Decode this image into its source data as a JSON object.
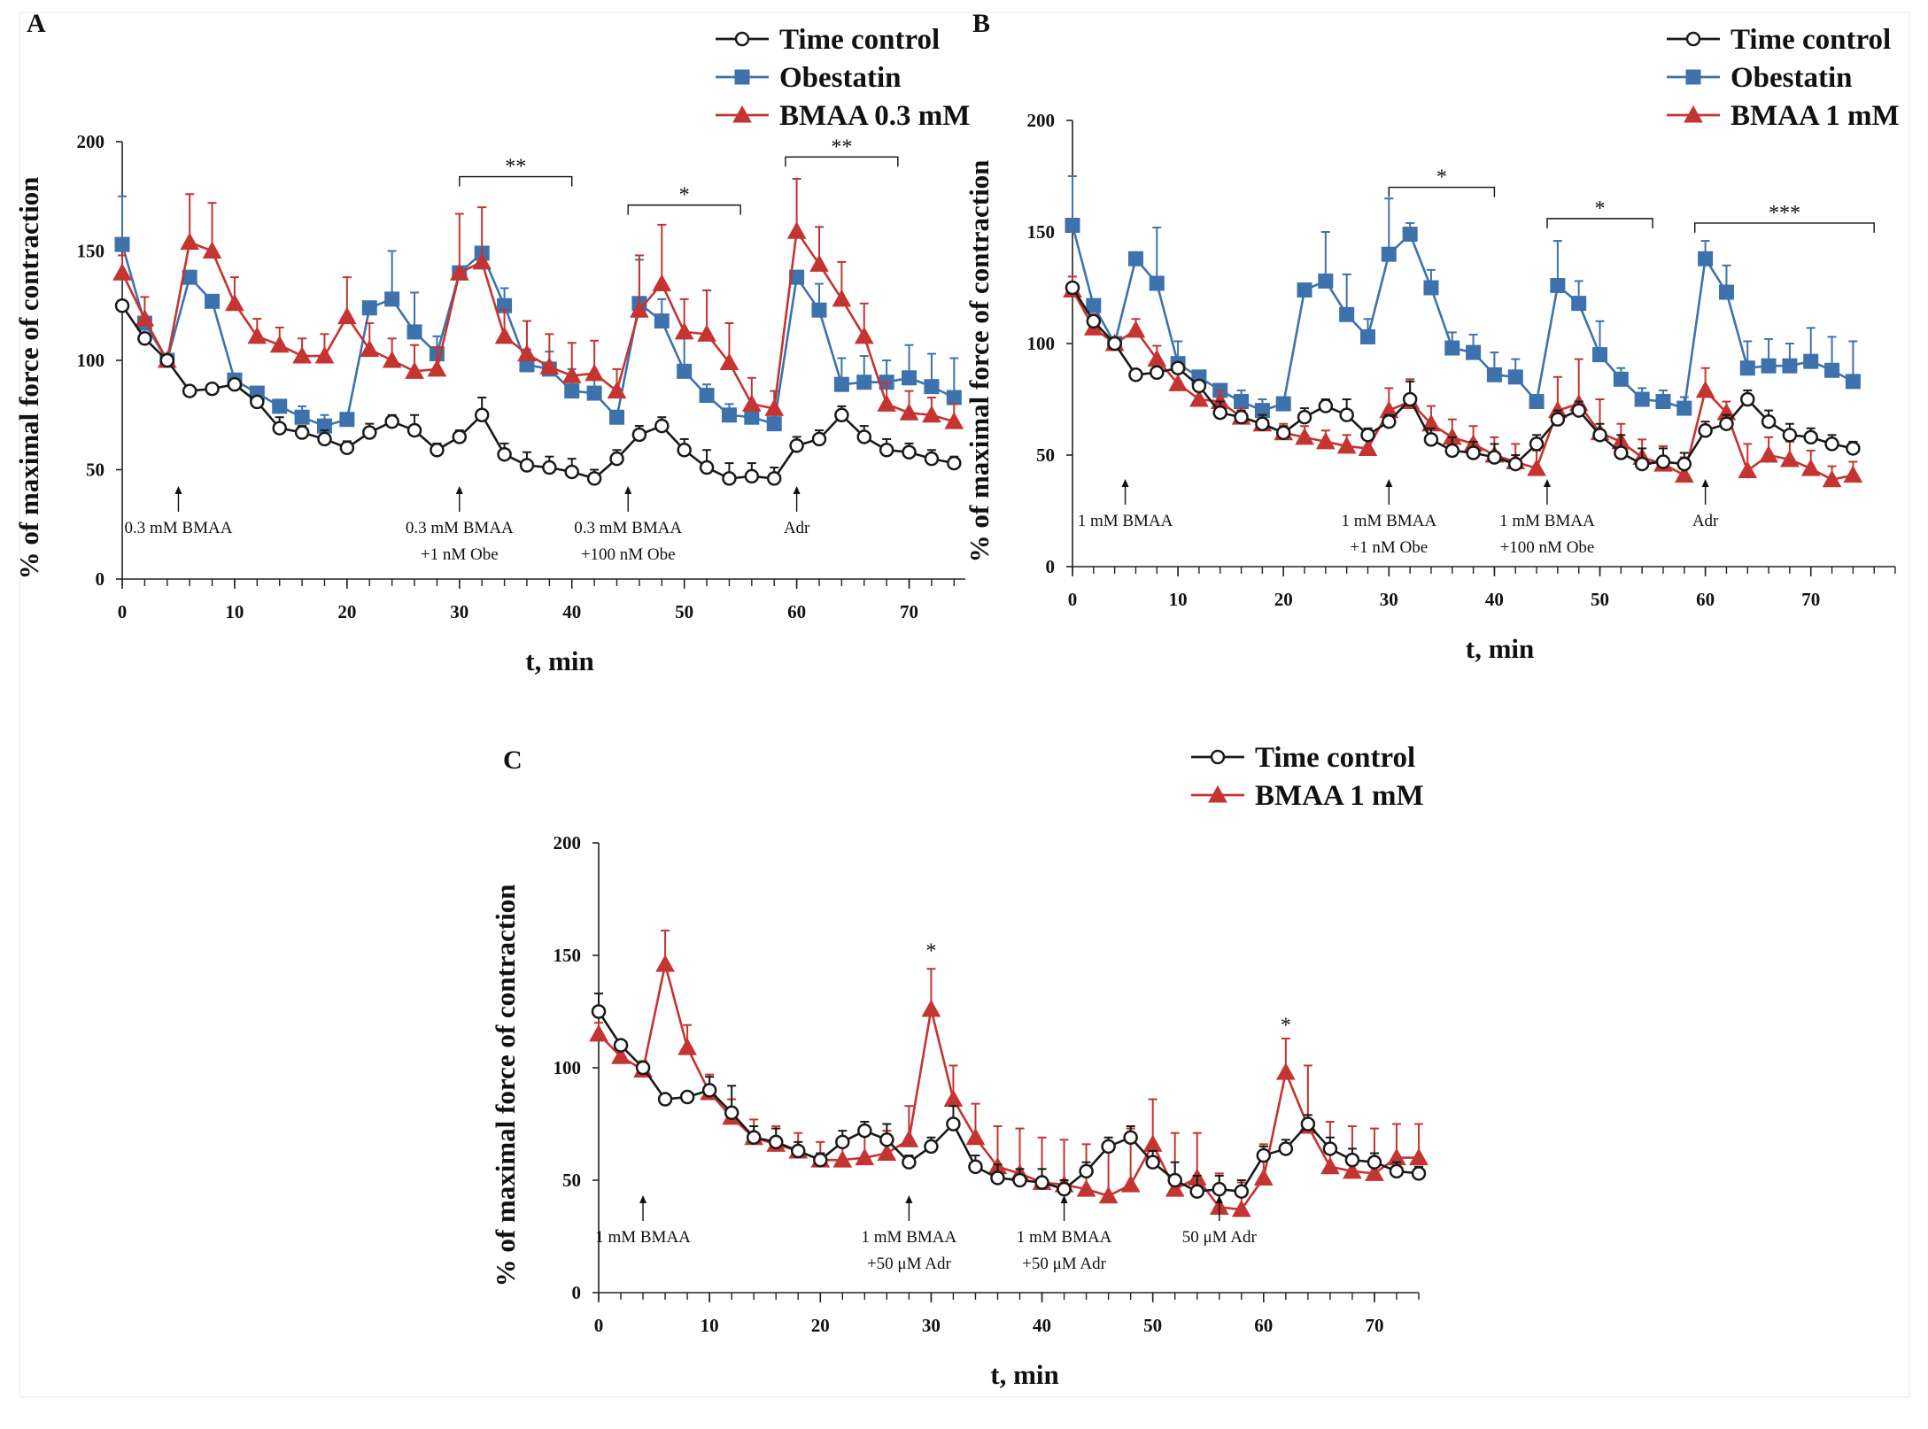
{
  "colors": {
    "control": "#1a1a1a",
    "obestatin": "#3d72ac",
    "bmaa": "#c43431"
  },
  "chart_data": [
    {
      "id": "A",
      "type": "line",
      "panel_label": "A",
      "xlabel": "t, min",
      "ylabel": "% of maximal force of contraction",
      "xlim": [
        0,
        75
      ],
      "ylim": [
        0,
        200
      ],
      "xticks": [
        0,
        10,
        20,
        30,
        40,
        50,
        60,
        70
      ],
      "yticks": [
        0,
        50,
        100,
        150,
        200
      ],
      "series": [
        {
          "name": "Time control",
          "key": "control",
          "marker": "circle",
          "x": [
            0,
            2,
            4,
            6,
            8,
            10,
            12,
            14,
            16,
            18,
            20,
            22,
            24,
            26,
            28,
            30,
            32,
            34,
            36,
            38,
            40,
            42,
            44,
            46,
            48,
            50,
            52,
            54,
            56,
            58,
            60,
            62,
            64,
            66,
            68,
            70,
            72,
            74
          ],
          "y": [
            125,
            110,
            100,
            86,
            87,
            89,
            81,
            69,
            67,
            64,
            60,
            67,
            72,
            68,
            59,
            65,
            75,
            57,
            52,
            51,
            49,
            46,
            55,
            66,
            70,
            59,
            51,
            46,
            47,
            46,
            61,
            64,
            75,
            65,
            59,
            58,
            55,
            53
          ],
          "err": [
            0,
            0,
            0,
            0,
            0,
            0,
            0,
            5,
            3,
            4,
            3,
            4,
            3,
            7,
            3,
            3,
            8,
            5,
            6,
            5,
            6,
            4,
            4,
            4,
            4,
            5,
            8,
            7,
            6,
            5,
            4,
            4,
            4,
            5,
            5,
            4,
            4,
            3
          ]
        },
        {
          "name": "Obestatin",
          "key": "obestatin",
          "marker": "square",
          "x": [
            0,
            2,
            4,
            6,
            8,
            10,
            12,
            14,
            16,
            18,
            20,
            22,
            24,
            26,
            28,
            30,
            32,
            34,
            36,
            38,
            40,
            42,
            44,
            46,
            48,
            50,
            52,
            54,
            56,
            58,
            60,
            62,
            64,
            66,
            68,
            70,
            72,
            74
          ],
          "y": [
            153,
            117,
            100,
            138,
            127,
            91,
            85,
            79,
            74,
            70,
            73,
            124,
            128,
            113,
            103,
            140,
            149,
            125,
            98,
            96,
            86,
            85,
            74,
            126,
            118,
            95,
            84,
            75,
            74,
            71,
            138,
            123,
            89,
            90,
            90,
            92,
            88,
            83
          ],
          "err": [
            22,
            0,
            0,
            0,
            0,
            0,
            0,
            0,
            5,
            5,
            0,
            0,
            22,
            18,
            8,
            0,
            0,
            8,
            7,
            8,
            10,
            8,
            0,
            20,
            10,
            15,
            5,
            5,
            5,
            5,
            0,
            12,
            12,
            12,
            10,
            15,
            15,
            18
          ]
        },
        {
          "name": "BMAA 0.3 mM",
          "key": "bmaa",
          "marker": "triangle",
          "x": [
            0,
            2,
            4,
            6,
            8,
            10,
            12,
            14,
            16,
            18,
            20,
            22,
            24,
            26,
            28,
            30,
            32,
            34,
            36,
            38,
            40,
            42,
            44,
            46,
            48,
            50,
            52,
            54,
            56,
            58,
            60,
            62,
            64,
            66,
            68,
            70,
            72,
            74
          ],
          "y": [
            140,
            119,
            100,
            154,
            150,
            126,
            111,
            107,
            102,
            102,
            120,
            105,
            100,
            95,
            96,
            140,
            145,
            111,
            103,
            97,
            93,
            94,
            86,
            123,
            135,
            113,
            112,
            99,
            80,
            78,
            159,
            144,
            128,
            111,
            80,
            76,
            75,
            72
          ],
          "err": [
            8,
            10,
            0,
            22,
            22,
            12,
            8,
            8,
            8,
            10,
            18,
            12,
            10,
            12,
            10,
            27,
            25,
            12,
            15,
            15,
            15,
            15,
            10,
            25,
            27,
            15,
            20,
            18,
            12,
            8,
            24,
            17,
            17,
            15,
            10,
            10,
            8,
            8
          ]
        }
      ],
      "annotations": [
        {
          "x": 5,
          "lines": [
            "0.3 mM BMAA"
          ]
        },
        {
          "x": 30,
          "lines": [
            "0.3 mM BMAA",
            "+1 nM Obe"
          ]
        },
        {
          "x": 45,
          "lines": [
            "0.3 mM BMAA",
            "+100 nM Obe"
          ]
        },
        {
          "x": 60,
          "lines": [
            "Adr"
          ]
        }
      ],
      "significance": [
        {
          "x1": 30,
          "x2": 40,
          "y": 184,
          "label": "**"
        },
        {
          "x1": 45,
          "x2": 55,
          "y": 171,
          "label": "*"
        },
        {
          "x1": 59,
          "x2": 69,
          "y": 193,
          "label": "**"
        }
      ]
    },
    {
      "id": "B",
      "type": "line",
      "panel_label": "B",
      "xlabel": "t, min",
      "ylabel": "% of maximal force of contraction",
      "xlim": [
        0,
        78
      ],
      "ylim": [
        0,
        200
      ],
      "xticks": [
        0,
        10,
        20,
        30,
        40,
        50,
        60,
        70
      ],
      "yticks": [
        0,
        50,
        100,
        150,
        200
      ],
      "series": [
        {
          "name": "Time control",
          "key": "control",
          "marker": "circle",
          "x": [
            0,
            2,
            4,
            6,
            8,
            10,
            12,
            14,
            16,
            18,
            20,
            22,
            24,
            26,
            28,
            30,
            32,
            34,
            36,
            38,
            40,
            42,
            44,
            46,
            48,
            50,
            52,
            54,
            56,
            58,
            60,
            62,
            64,
            66,
            68,
            70,
            72,
            74
          ],
          "y": [
            125,
            110,
            100,
            86,
            87,
            89,
            81,
            69,
            67,
            64,
            60,
            67,
            72,
            68,
            59,
            65,
            75,
            57,
            52,
            51,
            49,
            46,
            55,
            66,
            70,
            59,
            51,
            46,
            47,
            46,
            61,
            64,
            75,
            65,
            59,
            58,
            55,
            53
          ],
          "err": [
            0,
            0,
            0,
            0,
            0,
            0,
            0,
            5,
            3,
            4,
            3,
            4,
            3,
            7,
            3,
            3,
            8,
            5,
            6,
            5,
            6,
            4,
            4,
            4,
            4,
            5,
            8,
            7,
            6,
            5,
            4,
            4,
            4,
            5,
            5,
            4,
            4,
            3
          ]
        },
        {
          "name": "Obestatin",
          "key": "obestatin",
          "marker": "square",
          "x": [
            0,
            2,
            4,
            6,
            8,
            10,
            12,
            14,
            16,
            18,
            20,
            22,
            24,
            26,
            28,
            30,
            32,
            34,
            36,
            38,
            40,
            42,
            44,
            46,
            48,
            50,
            52,
            54,
            56,
            58,
            60,
            62,
            64,
            66,
            68,
            70,
            72,
            74
          ],
          "y": [
            153,
            117,
            100,
            138,
            127,
            91,
            85,
            79,
            74,
            70,
            73,
            124,
            128,
            113,
            103,
            140,
            149,
            125,
            98,
            96,
            86,
            85,
            74,
            126,
            118,
            95,
            84,
            75,
            74,
            71,
            138,
            123,
            89,
            90,
            90,
            92,
            88,
            83
          ],
          "err": [
            22,
            0,
            0,
            0,
            25,
            10,
            0,
            0,
            5,
            5,
            0,
            0,
            22,
            18,
            8,
            25,
            5,
            8,
            7,
            8,
            10,
            8,
            0,
            20,
            10,
            15,
            5,
            5,
            5,
            5,
            8,
            12,
            12,
            12,
            10,
            15,
            15,
            18
          ]
        },
        {
          "name": "BMAA 1 mM",
          "key": "bmaa",
          "marker": "triangle",
          "x": [
            0,
            2,
            4,
            6,
            8,
            10,
            12,
            14,
            16,
            18,
            20,
            22,
            24,
            26,
            28,
            30,
            32,
            34,
            36,
            38,
            40,
            42,
            44,
            46,
            48,
            50,
            52,
            54,
            56,
            58,
            60,
            62,
            64,
            66,
            68,
            70,
            72,
            74
          ],
          "y": [
            124,
            107,
            100,
            106,
            93,
            82,
            75,
            74,
            67,
            64,
            60,
            58,
            56,
            54,
            53,
            70,
            74,
            64,
            58,
            55,
            50,
            47,
            44,
            70,
            73,
            60,
            56,
            49,
            46,
            41,
            79,
            69,
            43,
            50,
            48,
            44,
            39,
            41
          ],
          "err": [
            6,
            6,
            0,
            5,
            6,
            6,
            5,
            5,
            4,
            4,
            4,
            5,
            5,
            5,
            5,
            10,
            10,
            8,
            8,
            8,
            8,
            8,
            8,
            15,
            20,
            15,
            8,
            8,
            8,
            8,
            10,
            5,
            12,
            8,
            8,
            8,
            6,
            6
          ]
        }
      ],
      "annotations": [
        {
          "x": 5,
          "lines": [
            "1 mM BMAA"
          ]
        },
        {
          "x": 30,
          "lines": [
            "1 mM BMAA",
            "+1 nM Obe"
          ]
        },
        {
          "x": 45,
          "lines": [
            "1 mM BMAA",
            "+100 nM Obe"
          ]
        },
        {
          "x": 60,
          "lines": [
            "Adr"
          ]
        }
      ],
      "significance": [
        {
          "x1": 30,
          "x2": 40,
          "y": 170,
          "label": "*"
        },
        {
          "x1": 45,
          "x2": 55,
          "y": 156,
          "label": "*"
        },
        {
          "x1": 59,
          "x2": 76,
          "y": 154,
          "label": "***"
        }
      ]
    },
    {
      "id": "C",
      "type": "line",
      "panel_label": "C",
      "xlabel": "t, min",
      "ylabel": "% of maximal force of contraction",
      "xlim": [
        0,
        74
      ],
      "ylim": [
        0,
        200
      ],
      "xticks": [
        0,
        10,
        20,
        30,
        40,
        50,
        60,
        70
      ],
      "yticks": [
        0,
        50,
        100,
        150,
        200
      ],
      "series": [
        {
          "name": "Time control",
          "key": "control",
          "marker": "circle",
          "x": [
            0,
            2,
            4,
            6,
            8,
            10,
            12,
            14,
            16,
            18,
            20,
            22,
            24,
            26,
            28,
            30,
            32,
            34,
            36,
            38,
            40,
            42,
            44,
            46,
            48,
            50,
            52,
            54,
            56,
            58,
            60,
            62,
            64,
            66,
            68,
            70,
            72,
            74
          ],
          "y": [
            125,
            110,
            100,
            86,
            87,
            90,
            80,
            69,
            67,
            63,
            59,
            67,
            72,
            68,
            58,
            65,
            75,
            56,
            51,
            50,
            49,
            46,
            54,
            65,
            69,
            58,
            50,
            45,
            46,
            45,
            61,
            64,
            75,
            64,
            59,
            58,
            54,
            53
          ],
          "err": [
            8,
            0,
            0,
            0,
            0,
            6,
            12,
            5,
            6,
            4,
            3,
            5,
            4,
            7,
            3,
            4,
            8,
            5,
            6,
            5,
            6,
            4,
            4,
            4,
            5,
            5,
            8,
            7,
            6,
            5,
            4,
            4,
            4,
            5,
            5,
            4,
            4,
            3
          ]
        },
        {
          "name": "BMAA 1 mM",
          "key": "bmaa",
          "marker": "triangle",
          "x": [
            0,
            2,
            4,
            6,
            8,
            10,
            12,
            14,
            16,
            18,
            20,
            22,
            24,
            26,
            28,
            30,
            32,
            34,
            36,
            38,
            40,
            42,
            44,
            46,
            48,
            50,
            52,
            54,
            56,
            58,
            60,
            62,
            64,
            66,
            68,
            70,
            72,
            74
          ],
          "y": [
            115,
            105,
            99,
            146,
            109,
            89,
            78,
            69,
            66,
            63,
            59,
            59,
            60,
            62,
            68,
            126,
            86,
            69,
            56,
            53,
            49,
            48,
            46,
            43,
            48,
            66,
            46,
            51,
            38,
            37,
            51,
            98,
            74,
            56,
            54,
            53,
            60,
            60
          ],
          "err": [
            5,
            5,
            4,
            15,
            10,
            8,
            8,
            8,
            8,
            8,
            8,
            8,
            10,
            10,
            15,
            18,
            15,
            15,
            18,
            20,
            20,
            20,
            20,
            22,
            25,
            20,
            25,
            20,
            15,
            12,
            15,
            15,
            27,
            20,
            20,
            20,
            15,
            15
          ]
        }
      ],
      "annotations": [
        {
          "x": 4,
          "lines": [
            "1 mM BMAA"
          ]
        },
        {
          "x": 28,
          "lines": [
            "1 mM BMAA",
            "+50 μM Adr"
          ]
        },
        {
          "x": 42,
          "lines": [
            "1 mM BMAA",
            "+50 μM Adr"
          ]
        },
        {
          "x": 56,
          "lines": [
            "50 μM Adr"
          ]
        }
      ],
      "point_marks": [
        {
          "x": 30,
          "y": 149,
          "label": "*"
        },
        {
          "x": 62,
          "y": 116,
          "label": "*"
        }
      ]
    }
  ]
}
